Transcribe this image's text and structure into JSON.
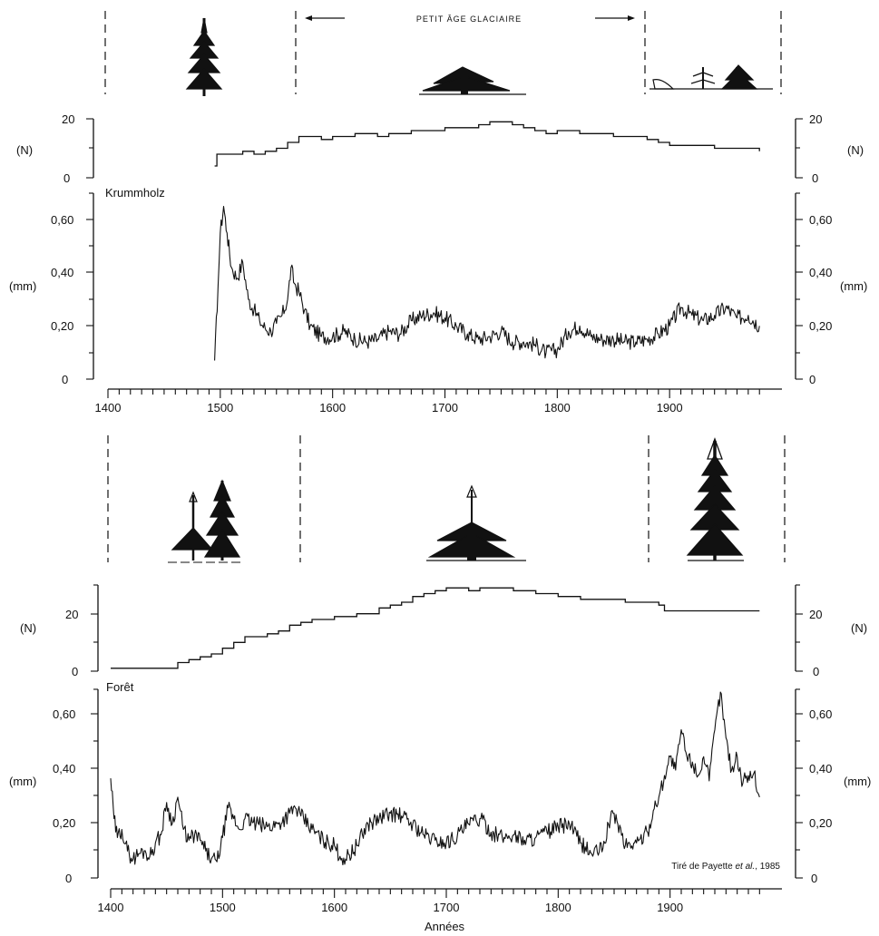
{
  "labels": {
    "petit_age": "PETIT ÂGE GLACIAIRE",
    "credit_prefix": "Tiré de Payette ",
    "credit_italic": "et al.",
    "credit_suffix": ", 1985",
    "xlabel": "Années"
  },
  "chart_data": [
    {
      "id": "krummholz_n",
      "type": "line",
      "title": "",
      "ylabel": "(N)",
      "ylim": [
        0,
        20
      ],
      "yticks": [
        "0",
        "20"
      ],
      "x": [
        1495,
        1497,
        1510,
        1520,
        1530,
        1540,
        1550,
        1560,
        1570,
        1580,
        1590,
        1600,
        1610,
        1620,
        1630,
        1640,
        1650,
        1660,
        1670,
        1680,
        1690,
        1700,
        1710,
        1720,
        1730,
        1740,
        1750,
        1760,
        1770,
        1780,
        1790,
        1800,
        1810,
        1820,
        1830,
        1840,
        1850,
        1860,
        1870,
        1880,
        1890,
        1900,
        1920,
        1940,
        1960,
        1980
      ],
      "values": [
        4,
        8,
        8,
        9,
        8,
        9,
        10,
        12,
        14,
        14,
        13,
        14,
        14,
        15,
        15,
        14,
        15,
        15,
        16,
        16,
        16,
        17,
        17,
        17,
        18,
        19,
        19,
        18,
        17,
        16,
        15,
        16,
        16,
        15,
        15,
        15,
        14,
        14,
        14,
        13,
        12,
        11,
        11,
        10,
        10,
        9
      ]
    },
    {
      "id": "krummholz_mm",
      "type": "line",
      "label": "Krummholz",
      "ylabel": "(mm)",
      "ylim": [
        0,
        0.7
      ],
      "yticks": [
        "0",
        "0,20",
        "0,40",
        "0,60"
      ],
      "x": [
        1495,
        1498,
        1500,
        1503,
        1506,
        1510,
        1515,
        1520,
        1525,
        1530,
        1535,
        1540,
        1545,
        1550,
        1555,
        1560,
        1563,
        1566,
        1570,
        1575,
        1580,
        1590,
        1600,
        1610,
        1620,
        1630,
        1640,
        1650,
        1660,
        1670,
        1680,
        1690,
        1700,
        1710,
        1720,
        1730,
        1740,
        1750,
        1760,
        1770,
        1780,
        1790,
        1800,
        1810,
        1820,
        1830,
        1840,
        1850,
        1860,
        1870,
        1880,
        1890,
        1900,
        1910,
        1920,
        1930,
        1940,
        1950,
        1960,
        1970,
        1980
      ],
      "values": [
        0.07,
        0.35,
        0.55,
        0.65,
        0.55,
        0.42,
        0.38,
        0.44,
        0.3,
        0.26,
        0.22,
        0.19,
        0.18,
        0.21,
        0.24,
        0.3,
        0.42,
        0.36,
        0.33,
        0.26,
        0.2,
        0.16,
        0.16,
        0.18,
        0.15,
        0.14,
        0.15,
        0.18,
        0.17,
        0.22,
        0.24,
        0.25,
        0.23,
        0.2,
        0.17,
        0.15,
        0.16,
        0.18,
        0.14,
        0.14,
        0.13,
        0.1,
        0.11,
        0.18,
        0.2,
        0.16,
        0.15,
        0.15,
        0.14,
        0.14,
        0.15,
        0.17,
        0.2,
        0.27,
        0.24,
        0.22,
        0.24,
        0.27,
        0.23,
        0.24,
        0.2
      ]
    },
    {
      "id": "foret_n",
      "type": "line",
      "title": "",
      "ylabel": "(N)",
      "ylim": [
        0,
        30
      ],
      "yticks": [
        "0",
        "20"
      ],
      "x": [
        1400,
        1440,
        1460,
        1470,
        1480,
        1490,
        1500,
        1510,
        1520,
        1530,
        1540,
        1550,
        1560,
        1570,
        1580,
        1600,
        1620,
        1640,
        1650,
        1660,
        1670,
        1680,
        1690,
        1700,
        1710,
        1720,
        1730,
        1740,
        1750,
        1760,
        1780,
        1800,
        1820,
        1840,
        1860,
        1880,
        1890,
        1895,
        1920,
        1950,
        1980
      ],
      "values": [
        1,
        1,
        3,
        4,
        5,
        6,
        8,
        10,
        12,
        12,
        13,
        14,
        16,
        17,
        18,
        19,
        20,
        22,
        23,
        24,
        26,
        27,
        28,
        29,
        29,
        28,
        29,
        29,
        29,
        28,
        27,
        26,
        25,
        25,
        24,
        24,
        23,
        21,
        21,
        21,
        21
      ]
    },
    {
      "id": "foret_mm",
      "type": "line",
      "label": "Forêt",
      "ylabel": "(mm)",
      "ylim": [
        0,
        0.7
      ],
      "yticks": [
        "0",
        "0,20",
        "0,40",
        "0,60"
      ],
      "x": [
        1400,
        1403,
        1406,
        1410,
        1415,
        1420,
        1425,
        1430,
        1435,
        1440,
        1445,
        1450,
        1455,
        1460,
        1465,
        1470,
        1475,
        1480,
        1485,
        1490,
        1495,
        1500,
        1505,
        1510,
        1515,
        1520,
        1530,
        1540,
        1550,
        1560,
        1565,
        1570,
        1580,
        1590,
        1600,
        1605,
        1610,
        1620,
        1630,
        1640,
        1650,
        1660,
        1670,
        1680,
        1690,
        1700,
        1710,
        1720,
        1730,
        1740,
        1750,
        1760,
        1770,
        1780,
        1790,
        1800,
        1810,
        1820,
        1830,
        1840,
        1845,
        1850,
        1860,
        1870,
        1880,
        1885,
        1890,
        1895,
        1900,
        1905,
        1910,
        1915,
        1920,
        1925,
        1930,
        1935,
        1940,
        1945,
        1950,
        1955,
        1960,
        1965,
        1970,
        1975,
        1980
      ],
      "values": [
        0.37,
        0.22,
        0.15,
        0.18,
        0.1,
        0.07,
        0.09,
        0.1,
        0.08,
        0.13,
        0.16,
        0.28,
        0.2,
        0.3,
        0.18,
        0.14,
        0.16,
        0.14,
        0.1,
        0.07,
        0.06,
        0.15,
        0.26,
        0.22,
        0.18,
        0.22,
        0.2,
        0.19,
        0.2,
        0.24,
        0.26,
        0.23,
        0.18,
        0.14,
        0.12,
        0.08,
        0.07,
        0.12,
        0.2,
        0.22,
        0.24,
        0.23,
        0.2,
        0.16,
        0.14,
        0.13,
        0.16,
        0.2,
        0.22,
        0.17,
        0.15,
        0.16,
        0.14,
        0.15,
        0.17,
        0.19,
        0.2,
        0.13,
        0.09,
        0.11,
        0.2,
        0.24,
        0.12,
        0.13,
        0.17,
        0.25,
        0.3,
        0.38,
        0.45,
        0.4,
        0.55,
        0.45,
        0.43,
        0.38,
        0.45,
        0.36,
        0.55,
        0.69,
        0.52,
        0.4,
        0.45,
        0.35,
        0.38,
        0.39,
        0.3
      ]
    }
  ]
}
